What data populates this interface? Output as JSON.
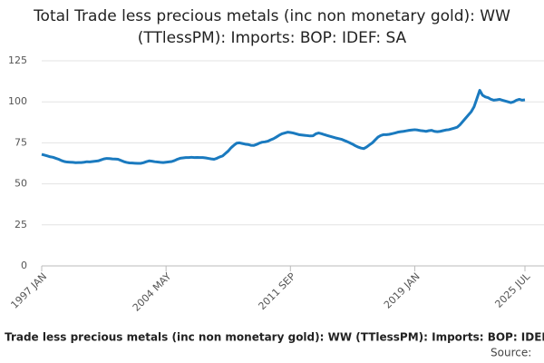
{
  "chart_data": {
    "type": "line",
    "title": "Total Trade less precious metals (inc non monetary gold): WW (TTlessPM): Imports: BOP: IDEF: SA",
    "xlabel": "Total Trade less precious metals (inc non monetary gold): WW (TTlessPM): Imports: BOP: IDEF: SA",
    "source": "Source:",
    "categories": [
      "1997 JAN",
      null,
      null,
      null,
      null,
      null,
      null,
      null,
      null,
      null,
      null,
      null,
      null,
      null,
      null,
      null,
      null,
      null,
      null,
      null,
      null,
      null,
      null,
      null,
      null,
      null,
      null,
      null,
      null,
      null,
      null,
      null,
      null,
      null,
      null,
      null,
      null,
      null,
      null,
      null,
      null,
      null,
      null,
      null,
      "2004 MAY",
      null,
      null,
      null,
      null,
      null,
      null,
      null,
      null,
      null,
      null,
      null,
      null,
      null,
      null,
      null,
      null,
      null,
      null,
      null,
      null,
      null,
      null,
      null,
      null,
      null,
      null,
      null,
      null,
      null,
      null,
      null,
      null,
      null,
      null,
      null,
      null,
      null,
      null,
      null,
      null,
      null,
      null,
      null,
      "2011 SEP",
      null,
      null,
      null,
      null,
      null,
      null,
      null,
      null,
      null,
      null,
      null,
      null,
      null,
      null,
      null,
      null,
      null,
      null,
      null,
      null,
      null,
      null,
      null,
      null,
      null,
      null,
      null,
      null,
      null,
      null,
      null,
      null,
      null,
      null,
      null,
      null,
      null,
      null,
      null,
      null,
      null,
      null,
      null,
      "2019 JAN",
      null,
      null,
      null,
      null,
      null,
      null,
      null,
      null,
      null,
      null,
      null,
      null,
      null,
      null,
      null,
      null,
      null,
      null,
      null,
      null,
      null,
      null,
      null,
      null,
      null,
      null,
      null,
      null,
      null,
      null,
      null,
      null,
      null,
      null,
      null,
      null,
      null,
      null,
      "2025 JUL"
    ],
    "series": [
      {
        "name": "TTlessPM",
        "color": "#1a7abf",
        "values": [
          68,
          67.5,
          67,
          66.5,
          66.2,
          65.6,
          65,
          64.2,
          63.6,
          63.3,
          63.2,
          63.1,
          62.9,
          63,
          63,
          63.2,
          63.5,
          63.4,
          63.6,
          63.8,
          64,
          64.6,
          65.2,
          65.5,
          65.4,
          65.2,
          65.1,
          65,
          64.3,
          63.6,
          63.1,
          62.8,
          62.7,
          62.6,
          62.5,
          62.5,
          62.9,
          63.5,
          64,
          63.8,
          63.5,
          63.3,
          63.1,
          63,
          63.2,
          63.4,
          63.6,
          64.2,
          65,
          65.6,
          65.8,
          66,
          66,
          66.2,
          66,
          66.1,
          66,
          66,
          65.8,
          65.5,
          65.2,
          65,
          65.6,
          66.4,
          67,
          68.5,
          70,
          72,
          73.5,
          74.8,
          75,
          74.6,
          74.2,
          74,
          73.5,
          73.4,
          74,
          74.8,
          75.4,
          75.6,
          76,
          76.8,
          77.5,
          78.5,
          79.6,
          80.5,
          81,
          81.5,
          81.3,
          81,
          80.5,
          80,
          79.8,
          79.6,
          79.4,
          79.2,
          79.3,
          80.5,
          81,
          80.6,
          80,
          79.5,
          79,
          78.5,
          78,
          77.6,
          77.2,
          76.5,
          75.8,
          75,
          74.2,
          73.2,
          72.4,
          71.8,
          71.5,
          72.5,
          73.8,
          75,
          76.8,
          78.5,
          79.5,
          80,
          80,
          80.2,
          80.6,
          81,
          81.5,
          81.8,
          82,
          82.3,
          82.6,
          82.8,
          83,
          82.8,
          82.5,
          82.3,
          82,
          82.4,
          82.6,
          82,
          81.8,
          82,
          82.4,
          82.8,
          83,
          83.5,
          84,
          84.5,
          86,
          88,
          90,
          92,
          94,
          97,
          102,
          107,
          104,
          103,
          102.5,
          101.5,
          101,
          101.2,
          101.5,
          101,
          100.5,
          100,
          99.5,
          100,
          101,
          101.5,
          101,
          101.2
        ]
      }
    ],
    "ylim": [
      0,
      125
    ],
    "yticks": [
      0,
      25,
      50,
      75,
      100,
      125
    ],
    "grid": true
  }
}
